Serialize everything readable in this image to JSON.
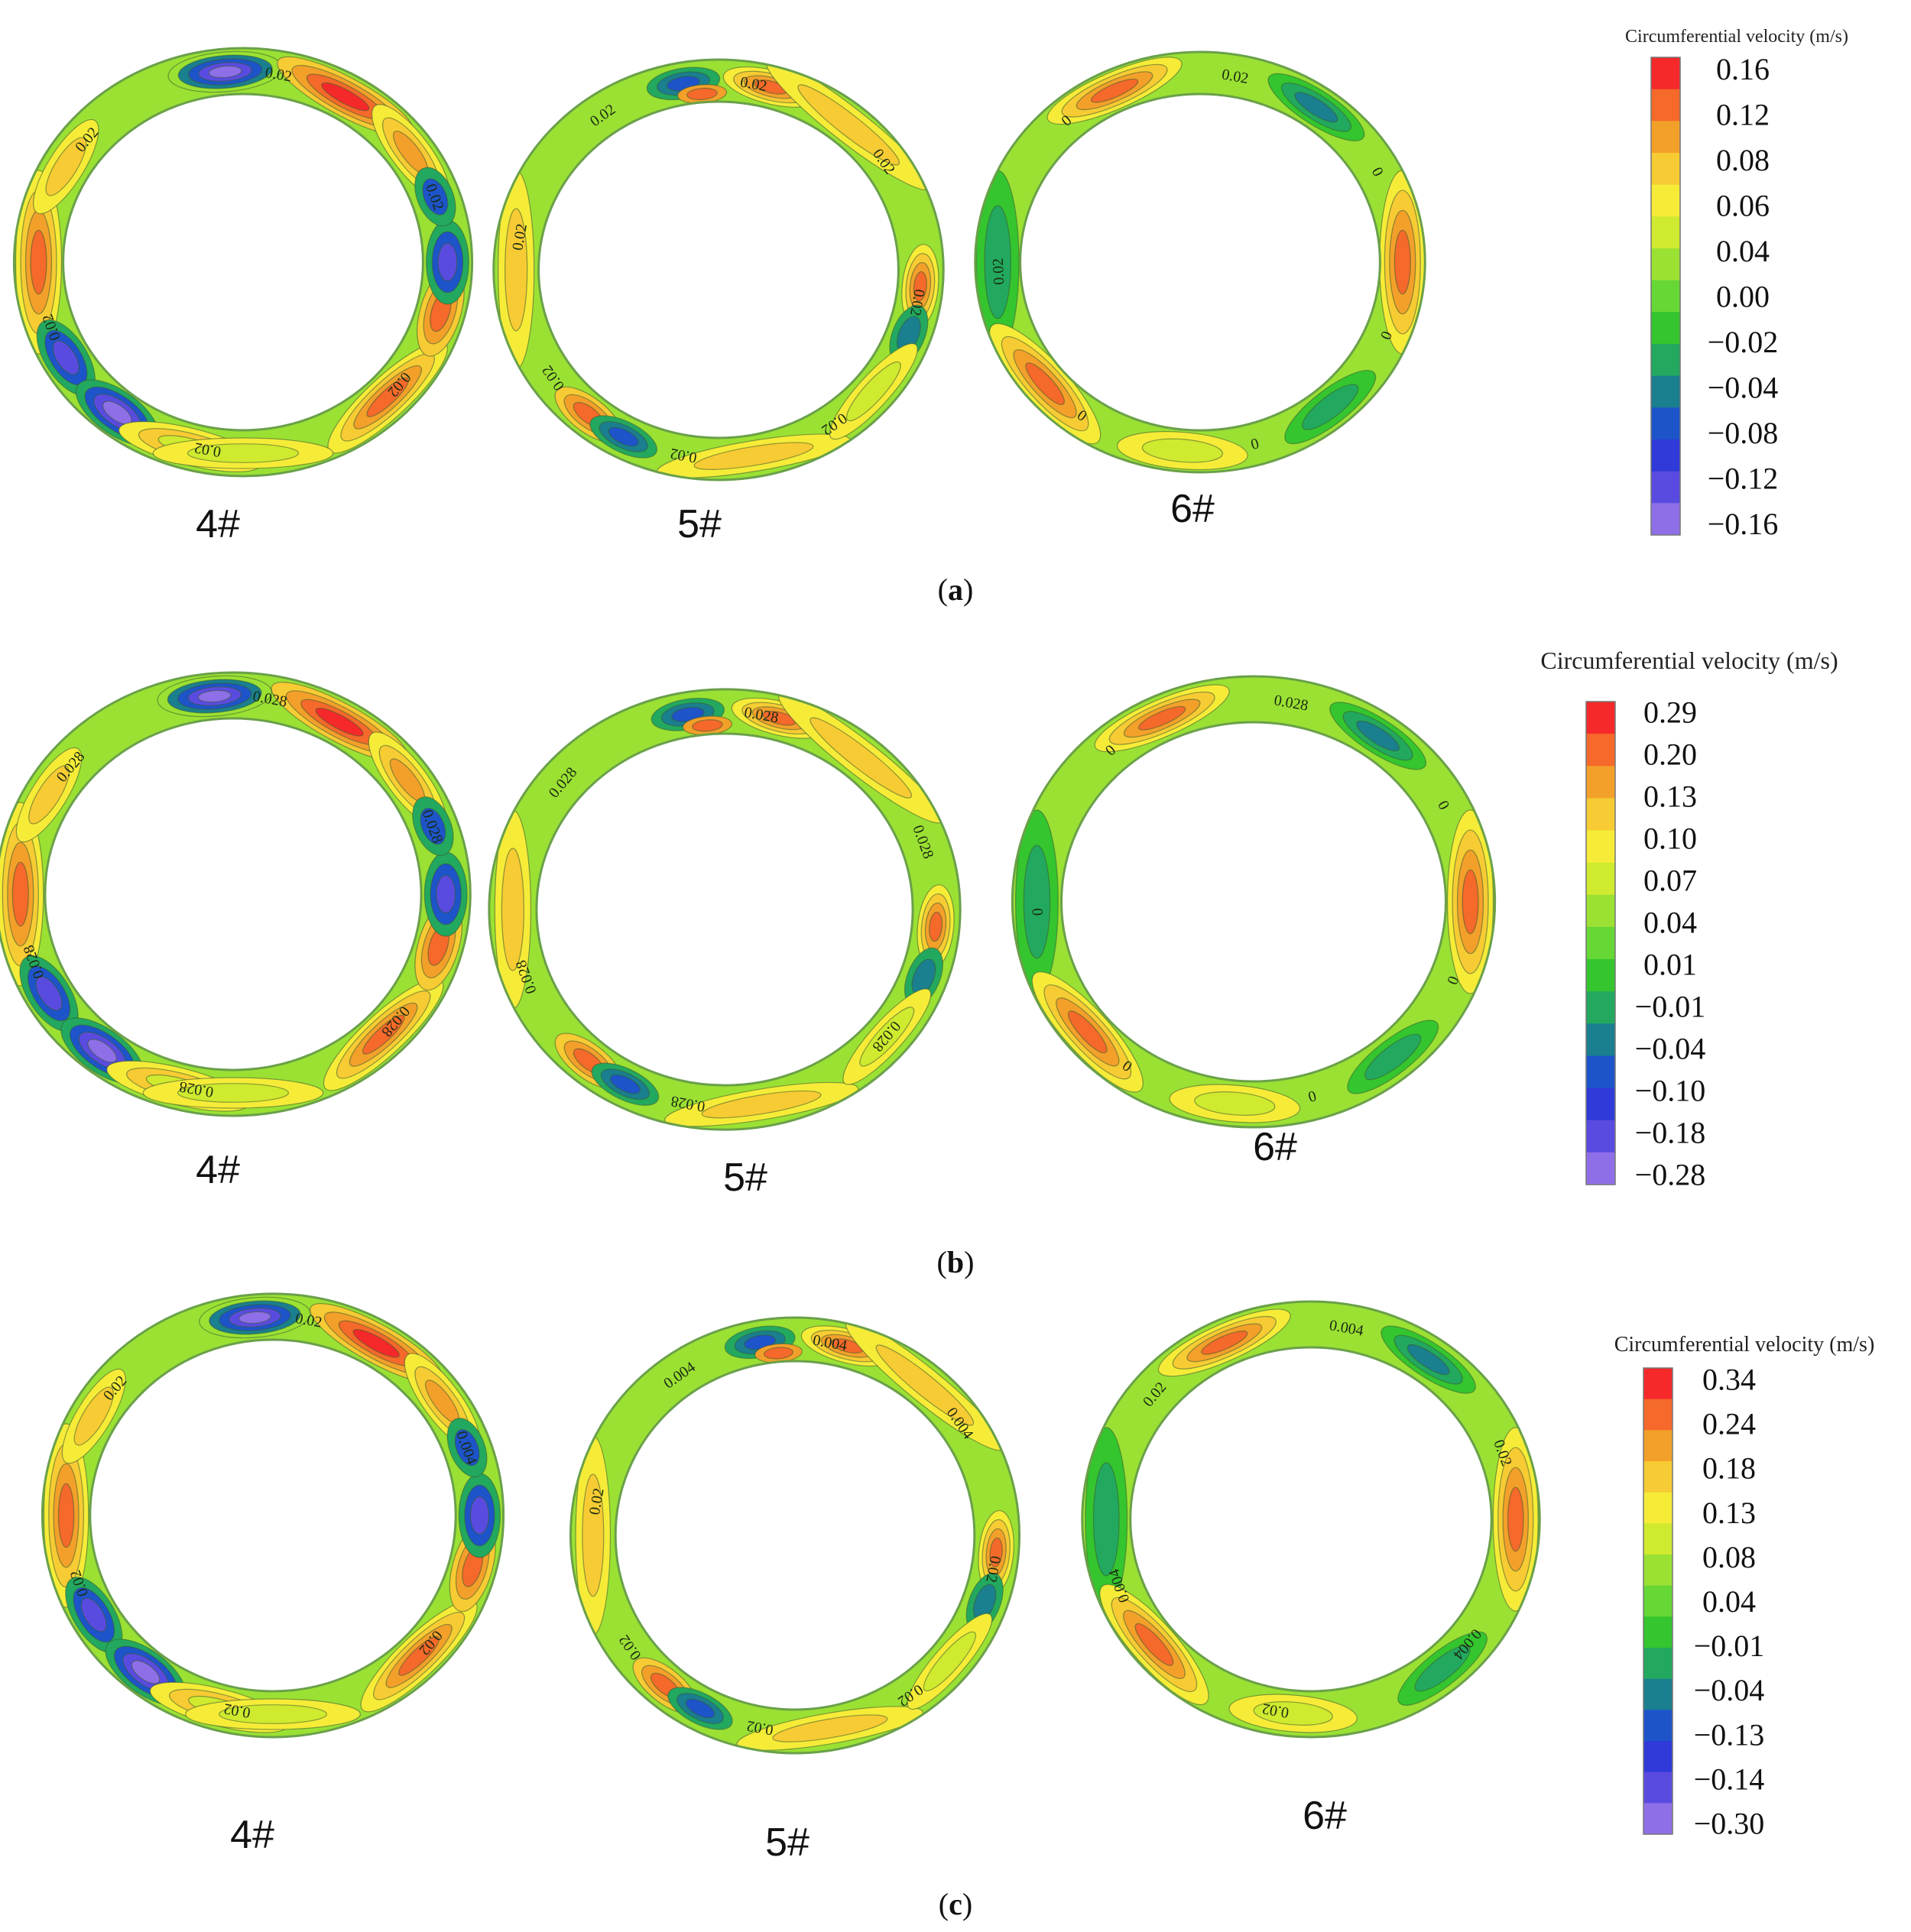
{
  "panels": [
    {
      "id": "a",
      "tag_open": "(",
      "tag_letter": "a",
      "tag_close": ")",
      "rings": [
        {
          "label": "4#",
          "contours": [
            "0.02",
            "0.02",
            "0.02",
            "0.02",
            "0.02",
            "0.02"
          ]
        },
        {
          "label": "5#",
          "contours": [
            "0.02",
            "0.02",
            "0.02",
            "0.02",
            "0.02",
            "0.02",
            "0.02",
            "0.02"
          ]
        },
        {
          "label": "6#",
          "contours": [
            "0.02",
            "0",
            "0",
            "0",
            "0",
            "0.02",
            "0"
          ]
        }
      ],
      "colorbar": {
        "title": "Circumferential velocity (m/s)",
        "ticks": [
          "0.16",
          "0.12",
          "0.08",
          "0.06",
          "0.04",
          "0.00",
          "−0.02",
          "−0.04",
          "−0.08",
          "−0.12",
          "−0.16"
        ]
      }
    },
    {
      "id": "b",
      "tag_open": "(",
      "tag_letter": "b",
      "tag_close": ")",
      "rings": [
        {
          "label": "4#",
          "contours": [
            "0.028",
            "0.028",
            "0.028",
            "0.028",
            "0.028",
            "0.028"
          ]
        },
        {
          "label": "5#",
          "contours": [
            "0.028",
            "0.028",
            "0.028",
            "0.028",
            "0.028",
            "0.028"
          ]
        },
        {
          "label": "6#",
          "contours": [
            "0.028",
            "0",
            "0",
            "0",
            "0",
            "0",
            "0"
          ]
        }
      ],
      "colorbar": {
        "title": "Circumferential velocity (m/s)",
        "ticks": [
          "0.29",
          "0.20",
          "0.13",
          "0.10",
          "0.07",
          "0.04",
          "0.01",
          "−0.01",
          "−0.04",
          "−0.10",
          "−0.18",
          "−0.28"
        ]
      }
    },
    {
      "id": "c",
      "tag_open": "(",
      "tag_letter": "c",
      "tag_close": ")",
      "rings": [
        {
          "label": "4#",
          "contours": [
            "0.02",
            "0.004",
            "0.02",
            "0.02",
            "0.02",
            "0.02"
          ]
        },
        {
          "label": "5#",
          "contours": [
            "0.004",
            "0.004",
            "0.02",
            "0.02",
            "0.02",
            "0.02",
            "0.02",
            "0.004"
          ]
        },
        {
          "label": "6#",
          "contours": [
            "0.004",
            "0.02",
            "0.004",
            "0.02",
            "0.004",
            "0.02"
          ]
        }
      ],
      "colorbar": {
        "title": "Circumferential velocity (m/s)",
        "ticks": [
          "0.34",
          "0.24",
          "0.18",
          "0.13",
          "0.08",
          "0.04",
          "−0.01",
          "−0.04",
          "−0.13",
          "−0.14",
          "−0.30"
        ]
      }
    }
  ],
  "palette": {
    "bands": [
      "#f5292a",
      "#f5692a",
      "#f3a02a",
      "#f7cb33",
      "#f6ec38",
      "#cfea2f",
      "#9be133",
      "#66d735",
      "#34c52f",
      "#22a95f",
      "#1a7f8e",
      "#1d54c9",
      "#2f3ad8",
      "#5a4be0",
      "#8f6fe8"
    ],
    "contour_line": "#3a5a30"
  }
}
